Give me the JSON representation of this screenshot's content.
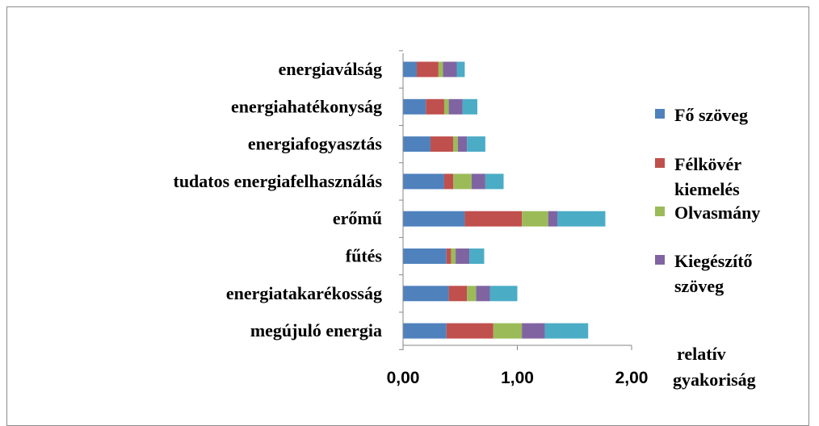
{
  "chart_data": {
    "type": "bar",
    "orientation": "horizontal",
    "stacked": true,
    "categories": [
      "energiaválság",
      "energiahatékonyság",
      "energiafogyasztás",
      "tudatos energiafelhasználás",
      "erőmű",
      "fűtés",
      "energiatakarékosság",
      "megújuló energia"
    ],
    "series": [
      {
        "name": "Fő szöveg",
        "color": "#4f81bd",
        "values": [
          0.12,
          0.2,
          0.24,
          0.36,
          0.54,
          0.38,
          0.4,
          0.38
        ]
      },
      {
        "name": "Félkövér kiemelés",
        "color": "#c0504d",
        "values": [
          0.19,
          0.16,
          0.2,
          0.08,
          0.5,
          0.04,
          0.16,
          0.41
        ]
      },
      {
        "name": "Olvasmány",
        "color": "#9bbb59",
        "values": [
          0.04,
          0.04,
          0.04,
          0.16,
          0.23,
          0.04,
          0.08,
          0.25
        ]
      },
      {
        "name": "Kiegészítő szöveg",
        "color": "#8064a2",
        "values": [
          0.12,
          0.12,
          0.08,
          0.12,
          0.08,
          0.12,
          0.12,
          0.2
        ]
      },
      {
        "name": "",
        "color": "#4bacc6",
        "values": [
          0.07,
          0.13,
          0.16,
          0.16,
          0.42,
          0.13,
          0.24,
          0.38
        ]
      }
    ],
    "xlim": [
      0,
      2
    ],
    "x_ticks": [
      "0,00",
      "1,00",
      "2,00"
    ],
    "xlabel": [
      "relatív",
      "gyakoriság"
    ],
    "legend": [
      {
        "label_lines": [
          "Fő szöveg"
        ],
        "color": "#4f81bd"
      },
      {
        "label_lines": [
          "Félkövér",
          "kiemelés"
        ],
        "color": "#c0504d"
      },
      {
        "label_lines": [
          "Olvasmány"
        ],
        "color": "#9bbb59"
      },
      {
        "label_lines": [
          "Kiegészítő",
          "szöveg"
        ],
        "color": "#8064a2"
      }
    ],
    "legend_position": "right",
    "grid": false
  }
}
